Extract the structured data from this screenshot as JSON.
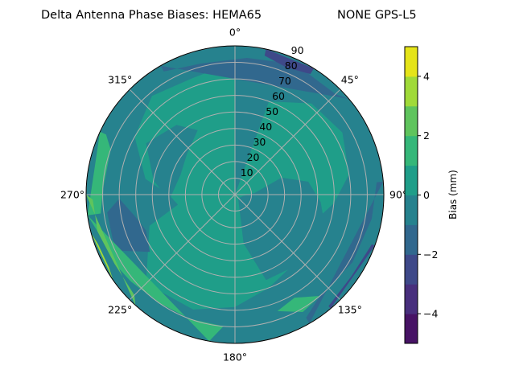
{
  "chart_data": {
    "type": "heatmap",
    "subtype": "polar filled contour",
    "title_left": "Delta Antenna Phase Biases: HEMA65",
    "title_right": "NONE GPS-L5",
    "angular_axis": {
      "direction": "clockwise",
      "zero_location": "top",
      "tick_labels": [
        "0°",
        "45°",
        "90°",
        "135°",
        "180°",
        "225°",
        "270°",
        "315°"
      ],
      "ticks": [
        0,
        45,
        90,
        135,
        180,
        225,
        270,
        315
      ]
    },
    "radial_axis": {
      "range": [
        0,
        90
      ],
      "ticks": [
        10,
        20,
        30,
        40,
        50,
        60,
        70,
        80,
        90
      ],
      "tick_labels": [
        "10",
        "20",
        "30",
        "40",
        "50",
        "60",
        "70",
        "80",
        "90"
      ],
      "label_angle": 22.5
    },
    "grid": true,
    "colorbar": {
      "label": "Bias (mm)",
      "colormap": "viridis",
      "levels": [
        -5,
        -4,
        -3,
        -2,
        -1,
        0,
        1,
        2,
        3,
        4,
        5
      ],
      "colors": [
        "#471365",
        "#482f7d",
        "#3e4989",
        "#31688e",
        "#26828e",
        "#1f9e89",
        "#35b779",
        "#5fc45d",
        "#a0da39",
        "#e5e419"
      ],
      "ticks": [
        -4,
        -2,
        0,
        2,
        4
      ],
      "tick_labels": [
        "−4",
        "−2",
        "0",
        "2",
        "4"
      ],
      "range": [
        -5,
        5
      ]
    },
    "regions": [
      {
        "band": [
          -1,
          0
        ],
        "points": "full-disk"
      },
      {
        "band": [
          0,
          1
        ],
        "points": [
          [
            0,
            0
          ],
          [
            20,
            60
          ],
          [
            40,
            72
          ],
          [
            60,
            75
          ],
          [
            80,
            70
          ],
          [
            95,
            60
          ],
          [
            110,
            50
          ],
          [
            140,
            55
          ],
          [
            160,
            60
          ],
          [
            180,
            68
          ],
          [
            200,
            74
          ],
          [
            225,
            76
          ],
          [
            250,
            55
          ],
          [
            260,
            35
          ],
          [
            270,
            40
          ],
          [
            280,
            55
          ],
          [
            300,
            70
          ],
          [
            320,
            78
          ],
          [
            340,
            75
          ],
          [
            355,
            78
          ],
          [
            360,
            78
          ]
        ]
      },
      {
        "band": [
          -1,
          0
        ],
        "points": [
          [
            70,
            30
          ],
          [
            85,
            12
          ],
          [
            100,
            5
          ],
          [
            140,
            3
          ],
          [
            170,
            30
          ],
          [
            160,
            55
          ],
          [
            135,
            58
          ],
          [
            110,
            58
          ],
          [
            95,
            52
          ],
          [
            80,
            45
          ]
        ]
      },
      {
        "band": [
          -1,
          0
        ],
        "points": [
          [
            265,
            40
          ],
          [
            280,
            50
          ],
          [
            300,
            62
          ],
          [
            320,
            55
          ],
          [
            330,
            45
          ],
          [
            310,
            38
          ],
          [
            290,
            35
          ]
        ]
      },
      {
        "band": [
          -2,
          -1
        ],
        "points": [
          [
            236,
            62
          ],
          [
            245,
            80
          ],
          [
            262,
            78
          ],
          [
            268,
            70
          ],
          [
            258,
            62
          ],
          [
            248,
            58
          ]
        ]
      },
      {
        "band": [
          -2,
          -1
        ],
        "points": [
          [
            330,
            86
          ],
          [
            345,
            82
          ],
          [
            5,
            83
          ],
          [
            25,
            87
          ],
          [
            45,
            86
          ],
          [
            50,
            90
          ],
          [
            330,
            90
          ]
        ]
      },
      {
        "band": [
          -2,
          -1
        ],
        "points": [
          [
            85,
            86
          ],
          [
            100,
            84
          ],
          [
            120,
            82
          ],
          [
            140,
            80
          ],
          [
            150,
            86
          ],
          [
            150,
            90
          ],
          [
            85,
            90
          ]
        ]
      },
      {
        "band": [
          -3,
          -2
        ],
        "points": [
          [
            12,
            86
          ],
          [
            22,
            83
          ],
          [
            32,
            86
          ],
          [
            32,
            90
          ],
          [
            12,
            90
          ]
        ]
      },
      {
        "band": [
          -3,
          -2
        ],
        "points": [
          [
            110,
            88
          ],
          [
            125,
            86
          ],
          [
            140,
            88
          ],
          [
            140,
            90
          ],
          [
            110,
            90
          ]
        ]
      },
      {
        "band": [
          1,
          2
        ],
        "points": [
          [
            262,
            82
          ],
          [
            272,
            80
          ],
          [
            290,
            80
          ],
          [
            295,
            86
          ],
          [
            295,
            90
          ],
          [
            262,
            90
          ]
        ]
      },
      {
        "band": [
          1,
          2
        ],
        "points": [
          [
            190,
            90
          ],
          [
            185,
            80
          ],
          [
            200,
            80
          ],
          [
            215,
            80
          ],
          [
            230,
            82
          ],
          [
            240,
            84
          ],
          [
            255,
            86
          ],
          [
            262,
            90
          ]
        ]
      },
      {
        "band": [
          1,
          2
        ],
        "points": [
          [
            140,
            80
          ],
          [
            150,
            72
          ],
          [
            160,
            75
          ],
          [
            150,
            82
          ]
        ]
      },
      {
        "band": [
          2,
          3
        ],
        "points": [
          [
            222,
            90
          ],
          [
            225,
            86
          ],
          [
            240,
            84
          ],
          [
            255,
            86
          ],
          [
            268,
            86
          ],
          [
            270,
            90
          ]
        ]
      },
      {
        "band": [
          3,
          4
        ],
        "points": [
          [
            235,
            90
          ],
          [
            240,
            88
          ],
          [
            250,
            88
          ],
          [
            255,
            90
          ]
        ]
      }
    ]
  }
}
